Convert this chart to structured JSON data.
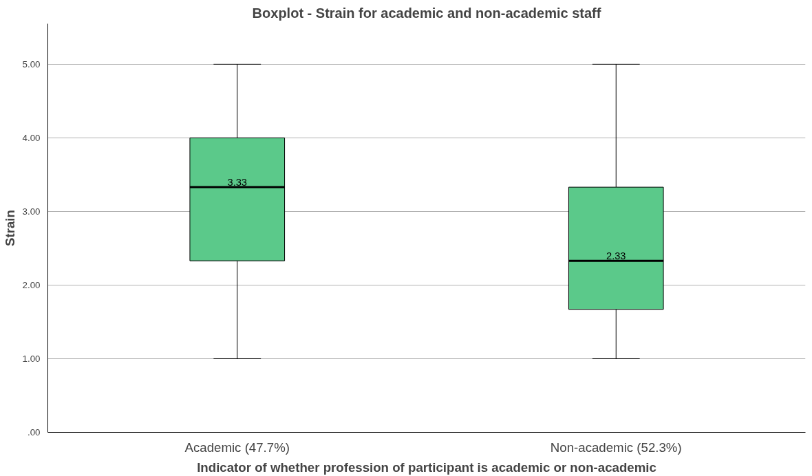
{
  "chart_data": {
    "type": "box",
    "title": "Boxplot - Strain for academic and non-academic staff",
    "xlabel": "Indicator of whether profession of participant is academic or non-academic",
    "ylabel": "Strain",
    "categories": [
      "Academic (47.7%)",
      "Non-academic (52.3%)"
    ],
    "series": [
      {
        "color": "#5bc98a",
        "boxes": [
          {
            "low": 1.0,
            "q1": 2.33,
            "median": 3.33,
            "q3": 4.0,
            "high": 5.0
          },
          {
            "low": 1.0,
            "q1": 1.67,
            "median": 2.33,
            "q3": 3.33,
            "high": 5.0
          }
        ]
      }
    ],
    "ylim": [
      0,
      5.55
    ],
    "yticks": [
      {
        "value": 0,
        "label": ".00"
      },
      {
        "value": 1,
        "label": "1.00"
      },
      {
        "value": 2,
        "label": "2.00"
      },
      {
        "value": 3,
        "label": "3.00"
      },
      {
        "value": 4,
        "label": "4.00"
      },
      {
        "value": 5,
        "label": "5.00"
      }
    ],
    "grid": "y",
    "annotations": [
      {
        "text": "3.33",
        "x": "Academic (47.7%)",
        "y": 3.33
      },
      {
        "text": "2.33",
        "x": "Non-academic (52.3%)",
        "y": 2.33
      }
    ]
  }
}
